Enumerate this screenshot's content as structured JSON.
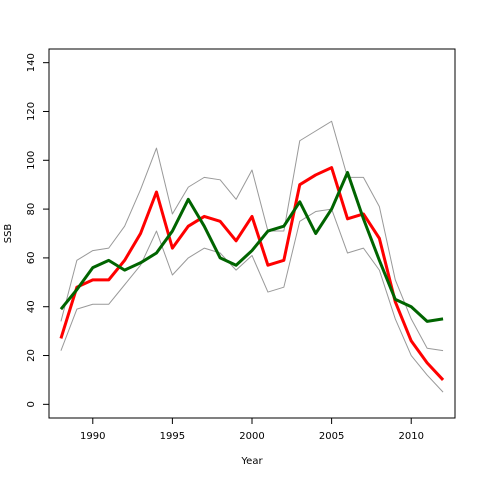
{
  "chart_data": {
    "type": "line",
    "xlabel": "Year",
    "ylabel": "SSB",
    "xlim": [
      1987.25,
      2012.75
    ],
    "ylim": [
      -5.6,
      145.6
    ],
    "x_ticks": [
      1990,
      1995,
      2000,
      2005,
      2010
    ],
    "y_ticks": [
      0,
      20,
      40,
      60,
      80,
      100,
      120,
      140
    ],
    "grid": false,
    "legend": "none",
    "x": [
      1988,
      1989,
      1990,
      1991,
      1992,
      1993,
      1994,
      1995,
      1996,
      1997,
      1998,
      1999,
      2000,
      2001,
      2002,
      2003,
      2004,
      2005,
      2006,
      2007,
      2008,
      2009,
      2010,
      2011,
      2012
    ],
    "series": [
      {
        "color": "#999999",
        "stroke_width": 1,
        "values": [
          34,
          59,
          63,
          64,
          73,
          88,
          105,
          78,
          89,
          93,
          92,
          84,
          96,
          71,
          71,
          108,
          112,
          116,
          93,
          93,
          81,
          51,
          35,
          23,
          22
        ]
      },
      {
        "color": "#999999",
        "stroke_width": 1,
        "values": [
          22,
          39,
          41,
          41,
          49,
          57,
          71,
          53,
          60,
          64,
          62,
          55,
          61,
          46,
          48,
          75,
          79,
          80,
          62,
          64,
          55,
          35,
          20,
          12,
          5
        ]
      },
      {
        "color": "#ff0000",
        "stroke_width": 3,
        "values": [
          27,
          48,
          51,
          51,
          59,
          70,
          87,
          64,
          73,
          77,
          75,
          67,
          77,
          57,
          59,
          90,
          94,
          97,
          76,
          78,
          68,
          42,
          26,
          17,
          10
        ]
      },
      {
        "color": "#006400",
        "stroke_width": 3,
        "values": [
          39,
          47,
          56,
          59,
          55,
          58,
          62,
          71,
          84,
          73,
          60,
          57,
          63,
          71,
          73,
          83,
          70,
          80,
          95,
          76,
          59,
          43,
          40,
          34,
          35
        ]
      }
    ]
  }
}
